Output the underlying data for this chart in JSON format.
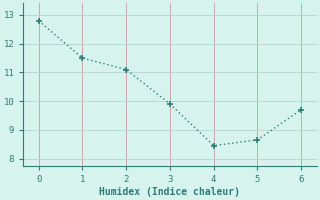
{
  "x": [
    0,
    1,
    2,
    3,
    4,
    5,
    6
  ],
  "y": [
    12.8,
    11.5,
    11.1,
    9.9,
    8.45,
    8.65,
    9.7
  ],
  "xlabel": "Humidex (Indice chaleur)",
  "line_color": "#2d7d74",
  "marker_color": "#2d7d74",
  "bg_color": "#d6f3ee",
  "grid_color_x": "#c8a8a8",
  "grid_color_y": "#b8d8d4",
  "spine_color": "#2d7d74",
  "xlim": [
    -0.35,
    6.35
  ],
  "ylim": [
    7.75,
    13.4
  ],
  "xticks": [
    0,
    1,
    2,
    3,
    4,
    5,
    6
  ],
  "yticks": [
    8,
    9,
    10,
    11,
    12,
    13
  ],
  "figsize": [
    3.2,
    2.0
  ],
  "dpi": 100
}
